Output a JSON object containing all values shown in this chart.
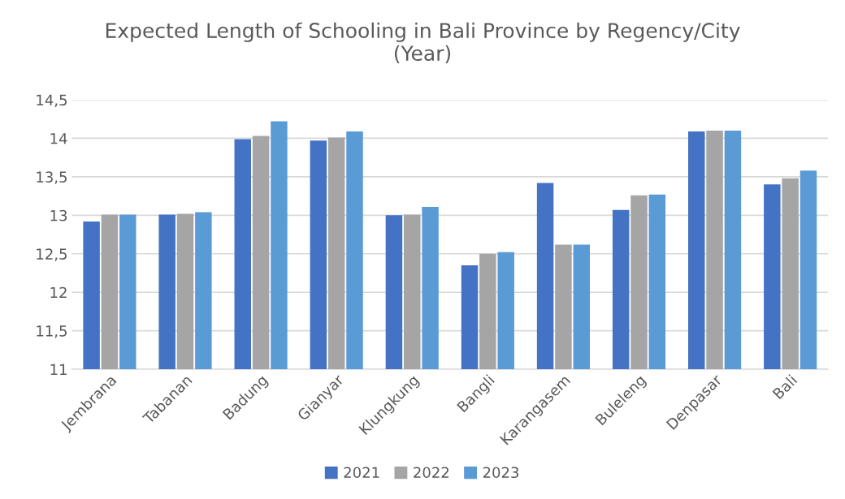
{
  "chart_data": {
    "type": "bar",
    "title": "Expected Length of Schooling in Bali Province by Regency/City\n(Year)",
    "categories": [
      "Jembrana",
      "Tabanan",
      "Badung",
      "Gianyar",
      "Klungkung",
      "Bangli",
      "Karangasem",
      "Buleleng",
      "Denpasar",
      "Bali"
    ],
    "series": [
      {
        "name": "2021",
        "color": "#4472c4",
        "values": [
          12.92,
          13.01,
          13.99,
          13.97,
          13.0,
          12.35,
          13.42,
          13.07,
          14.09,
          13.4
        ]
      },
      {
        "name": "2022",
        "color": "#a5a5a5",
        "values": [
          13.01,
          13.02,
          14.03,
          14.01,
          13.01,
          12.5,
          12.62,
          13.26,
          14.1,
          13.48
        ]
      },
      {
        "name": "2023",
        "color": "#5b9bd5",
        "values": [
          13.01,
          13.04,
          14.22,
          14.09,
          13.11,
          12.52,
          12.62,
          13.27,
          14.1,
          13.58
        ]
      }
    ],
    "ylim": [
      11,
      14.5
    ],
    "yticks": [
      11,
      {
        "value": 11.5,
        "label": "11,5"
      },
      12,
      {
        "value": 12.5,
        "label": "12,5"
      },
      13,
      {
        "value": 13.5,
        "label": "13,5"
      },
      14,
      {
        "value": 14.5,
        "label": "14,5"
      }
    ],
    "grid": "y",
    "legend": "bottom"
  }
}
